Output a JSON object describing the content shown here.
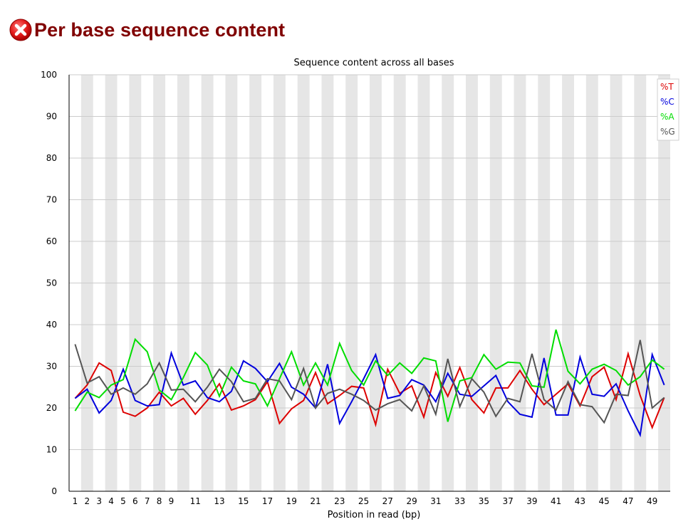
{
  "header": {
    "title": "Per base sequence content",
    "status_icon": "error-icon"
  },
  "colors": {
    "title": "#800000",
    "stripe": "#e6e6e6",
    "grid": "#cccccc",
    "axis": "#000000"
  },
  "chart_data": {
    "type": "line",
    "title": "Sequence content across all bases",
    "xlabel": "Position in read (bp)",
    "ylabel": "",
    "ylim": [
      0,
      100
    ],
    "yticks": [
      0,
      10,
      20,
      30,
      40,
      50,
      60,
      70,
      80,
      90,
      100
    ],
    "xlim": [
      1,
      50
    ],
    "xtick_labels": [
      "1",
      "2",
      "3",
      "4",
      "5",
      "6",
      "7",
      "8",
      "9",
      "11",
      "13",
      "15",
      "17",
      "19",
      "21",
      "23",
      "25",
      "27",
      "29",
      "31",
      "33",
      "35",
      "37",
      "39",
      "41",
      "43",
      "45",
      "47",
      "49"
    ],
    "grid": "horizontal",
    "alternating_column_shading": true,
    "legend_position": "top-right",
    "x": [
      1,
      2,
      3,
      4,
      5,
      6,
      7,
      8,
      9,
      10,
      11,
      12,
      13,
      14,
      15,
      16,
      17,
      18,
      19,
      20,
      21,
      22,
      23,
      24,
      25,
      26,
      27,
      28,
      29,
      30,
      31,
      32,
      33,
      34,
      35,
      36,
      37,
      38,
      39,
      40,
      41,
      42,
      43,
      44,
      45,
      46,
      47,
      48,
      49,
      50
    ],
    "series": [
      {
        "name": "%T",
        "color": "#dd0000",
        "values": [
          22.3,
          25.5,
          30.8,
          29.0,
          19.0,
          18.0,
          20.0,
          23.8,
          20.5,
          22.3,
          18.5,
          21.8,
          25.8,
          19.5,
          20.5,
          22.0,
          26.3,
          16.3,
          19.8,
          21.8,
          28.5,
          21.0,
          23.0,
          25.2,
          24.8,
          16.0,
          29.3,
          23.5,
          25.3,
          17.8,
          28.5,
          22.8,
          29.7,
          22.0,
          18.8,
          24.8,
          24.8,
          29.0,
          24.5,
          20.8,
          23.3,
          25.8,
          20.5,
          27.5,
          29.8,
          22.0,
          33.0,
          23.0,
          15.3,
          22.5
        ]
      },
      {
        "name": "%C",
        "color": "#0000dd",
        "values": [
          22.3,
          24.5,
          18.8,
          21.8,
          29.3,
          21.8,
          20.5,
          20.8,
          33.2,
          25.5,
          26.5,
          22.5,
          21.5,
          24.0,
          31.3,
          29.5,
          26.3,
          30.7,
          25.0,
          23.3,
          20.0,
          30.5,
          16.3,
          21.5,
          27.0,
          32.8,
          22.3,
          23.0,
          26.8,
          25.5,
          21.5,
          28.3,
          23.3,
          22.8,
          25.3,
          27.8,
          21.5,
          18.5,
          17.8,
          32.0,
          18.3,
          18.3,
          32.2,
          23.3,
          22.8,
          25.8,
          19.3,
          13.5,
          32.8,
          25.5
        ]
      },
      {
        "name": "%A",
        "color": "#00dd00",
        "values": [
          19.3,
          23.8,
          22.5,
          25.5,
          26.8,
          36.5,
          33.5,
          24.3,
          22.0,
          27.3,
          33.3,
          30.3,
          22.8,
          29.8,
          26.5,
          25.8,
          20.5,
          27.0,
          33.5,
          25.5,
          30.8,
          25.5,
          35.5,
          29.0,
          25.5,
          31.3,
          27.8,
          30.8,
          28.3,
          32.0,
          31.3,
          16.7,
          26.5,
          27.3,
          32.8,
          29.3,
          31.0,
          30.8,
          25.3,
          25.0,
          38.8,
          28.8,
          25.8,
          29.3,
          30.5,
          29.0,
          25.5,
          27.5,
          31.5,
          29.3
        ]
      },
      {
        "name": "%G",
        "color": "#555555",
        "values": [
          35.3,
          26.0,
          27.5,
          23.3,
          24.8,
          23.3,
          25.8,
          30.8,
          24.3,
          24.5,
          21.5,
          25.0,
          29.3,
          26.3,
          21.5,
          22.3,
          27.0,
          26.5,
          22.0,
          29.5,
          20.0,
          23.5,
          24.5,
          23.3,
          21.8,
          19.5,
          21.0,
          22.0,
          19.3,
          25.3,
          18.5,
          31.8,
          20.3,
          27.0,
          23.8,
          18.0,
          22.3,
          21.5,
          33.0,
          22.0,
          19.5,
          26.3,
          20.8,
          20.3,
          16.5,
          23.3,
          23.0,
          36.3,
          20.0,
          22.5
        ]
      }
    ]
  }
}
